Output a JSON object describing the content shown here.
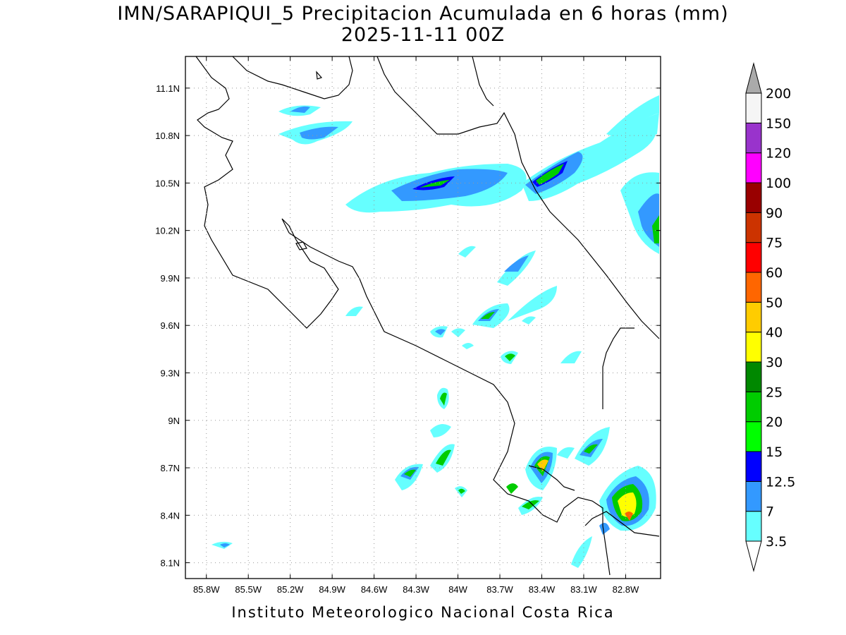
{
  "title_line1": "IMN/SARAPIQUI_5 Precipitacion Acumulada en 6 horas (mm)",
  "title_line2": "2025-11-11 00Z",
  "footer": "Instituto Meteorologico Nacional Costa Rica",
  "map": {
    "lon_range": [
      -85.95,
      -82.55
    ],
    "lat_range": [
      8.0,
      11.3
    ],
    "grid": "dotted",
    "x_ticks": [
      {
        "lon": -85.8,
        "label": "85.8W"
      },
      {
        "lon": -85.5,
        "label": "85.5W"
      },
      {
        "lon": -85.2,
        "label": "85.2W"
      },
      {
        "lon": -84.9,
        "label": "84.9W"
      },
      {
        "lon": -84.6,
        "label": "84.6W"
      },
      {
        "lon": -84.3,
        "label": "84.3W"
      },
      {
        "lon": -84.0,
        "label": "84W"
      },
      {
        "lon": -83.7,
        "label": "83.7W"
      },
      {
        "lon": -83.4,
        "label": "83.4W"
      },
      {
        "lon": -83.1,
        "label": "83.1W"
      },
      {
        "lon": -82.8,
        "label": "82.8W"
      }
    ],
    "y_ticks": [
      {
        "lat": 11.1,
        "label": "11.1N"
      },
      {
        "lat": 10.8,
        "label": "10.8N"
      },
      {
        "lat": 10.5,
        "label": "10.5N"
      },
      {
        "lat": 10.2,
        "label": "10.2N"
      },
      {
        "lat": 9.9,
        "label": "9.9N"
      },
      {
        "lat": 9.6,
        "label": "9.6N"
      },
      {
        "lat": 9.3,
        "label": "9.3N"
      },
      {
        "lat": 9.0,
        "label": "9N"
      },
      {
        "lat": 8.7,
        "label": "8.7N"
      },
      {
        "lat": 8.4,
        "label": "8.4N"
      },
      {
        "lat": 8.1,
        "label": "8.1N"
      }
    ]
  },
  "colorbar": {
    "levels": [
      "3.5",
      "7",
      "12.5",
      "15",
      "20",
      "25",
      "30",
      "40",
      "50",
      "60",
      "75",
      "90",
      "100",
      "120",
      "150",
      "200"
    ],
    "colors": [
      "#ffffff",
      "#66ffff",
      "#3399ff",
      "#0000ff",
      "#00ff00",
      "#00cc00",
      "#008800",
      "#ffff00",
      "#ffcc00",
      "#ff6600",
      "#ff0000",
      "#cc3300",
      "#990000",
      "#ff00ff",
      "#9933cc",
      "#f5f5f5",
      "#aaaaaa"
    ]
  },
  "colors": {
    "c35": "#66ffff",
    "c7": "#3399ff",
    "c125": "#0000ff",
    "c15": "#00ff00",
    "c20": "#00cc00",
    "c25": "#008800",
    "c30": "#ffff00",
    "c40": "#ffcc00",
    "c50": "#ff6600"
  }
}
